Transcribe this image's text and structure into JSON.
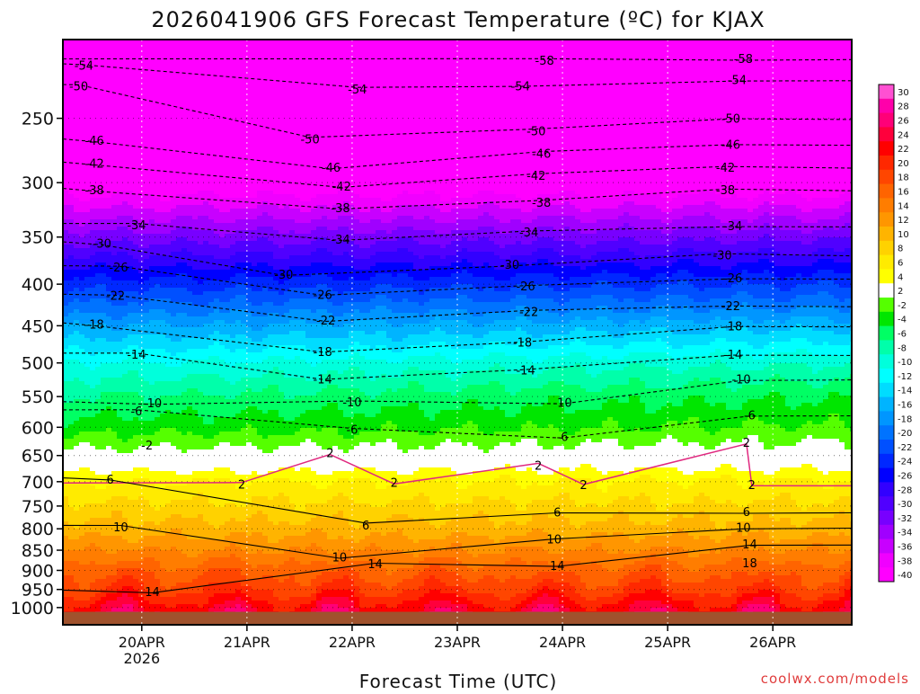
{
  "chart_data": {
    "type": "heatmap",
    "title": "2026041906 GFS Forecast Temperature (ºC) for KJAX",
    "xlabel": "Forecast Time (UTC)",
    "ylabel": "",
    "credit": "coolwx.com/models",
    "x_ticks": [
      {
        "label": "20APR",
        "sublabel": "2026",
        "day": 20
      },
      {
        "label": "21APR",
        "sublabel": "",
        "day": 21
      },
      {
        "label": "22APR",
        "sublabel": "",
        "day": 22
      },
      {
        "label": "23APR",
        "sublabel": "",
        "day": 23
      },
      {
        "label": "24APR",
        "sublabel": "",
        "day": 24
      },
      {
        "label": "25APR",
        "sublabel": "",
        "day": 25
      },
      {
        "label": "26APR",
        "sublabel": "",
        "day": 26
      }
    ],
    "xlim": [
      19.25,
      26.75
    ],
    "y_ticks": [
      250,
      300,
      350,
      400,
      450,
      500,
      550,
      600,
      650,
      700,
      750,
      800,
      850,
      900,
      950,
      1000
    ],
    "ylim": [
      1050,
      200
    ],
    "y_scale": "log",
    "colorbar": {
      "labels": [
        "30",
        "28",
        "26",
        "24",
        "22",
        "20",
        "18",
        "16",
        "14",
        "12",
        "10",
        "8",
        "6",
        "4",
        "2",
        "-2",
        "-4",
        "-6",
        "-8",
        "-10",
        "-12",
        "-14",
        "-16",
        "-18",
        "-20",
        "-22",
        "-24",
        "-26",
        "-28",
        "-30",
        "-32",
        "-34",
        "-36",
        "-38",
        "-40"
      ],
      "colors": [
        "#ff50d2",
        "#ff00aa",
        "#ff0078",
        "#ff003c",
        "#ff0000",
        "#ff2800",
        "#ff4600",
        "#ff6400",
        "#ff7d00",
        "#ff9600",
        "#ffb400",
        "#ffd200",
        "#ffeb00",
        "#ffff00",
        "#ffffff",
        "#55ff00",
        "#00e600",
        "#00ff64",
        "#00ffaa",
        "#00ffdc",
        "#00ffff",
        "#00dcff",
        "#00b4ff",
        "#0096ff",
        "#0073ff",
        "#0050ff",
        "#0028ff",
        "#0000ff",
        "#3200ff",
        "#5000ff",
        "#7800ff",
        "#a000ff",
        "#c800ff",
        "#f000ff",
        "#ff00ff"
      ]
    },
    "ground_color": "#a0522d",
    "freezing_line_color": "#e0287f",
    "contour_labels": [
      {
        "text": "-54",
        "x": 19.45,
        "p": 215
      },
      {
        "text": "-58",
        "x": 23.83,
        "p": 212
      },
      {
        "text": "-58",
        "x": 25.72,
        "p": 211
      },
      {
        "text": "-50",
        "x": 19.4,
        "p": 228
      },
      {
        "text": "-54",
        "x": 22.05,
        "p": 230
      },
      {
        "text": "-54",
        "x": 23.6,
        "p": 228
      },
      {
        "text": "-54",
        "x": 25.66,
        "p": 224
      },
      {
        "text": "-46",
        "x": 19.55,
        "p": 266
      },
      {
        "text": "-50",
        "x": 21.6,
        "p": 265
      },
      {
        "text": "-50",
        "x": 23.75,
        "p": 259
      },
      {
        "text": "-50",
        "x": 25.6,
        "p": 250
      },
      {
        "text": "-42",
        "x": 19.55,
        "p": 284
      },
      {
        "text": "-46",
        "x": 21.8,
        "p": 287
      },
      {
        "text": "-46",
        "x": 23.8,
        "p": 276
      },
      {
        "text": "-46",
        "x": 25.6,
        "p": 269
      },
      {
        "text": "-38",
        "x": 19.55,
        "p": 306
      },
      {
        "text": "-42",
        "x": 21.9,
        "p": 303
      },
      {
        "text": "-42",
        "x": 23.75,
        "p": 294
      },
      {
        "text": "-42",
        "x": 25.55,
        "p": 287
      },
      {
        "text": "-34",
        "x": 19.95,
        "p": 338
      },
      {
        "text": "-38",
        "x": 21.89,
        "p": 322
      },
      {
        "text": "-38",
        "x": 23.8,
        "p": 317
      },
      {
        "text": "-38",
        "x": 25.55,
        "p": 306
      },
      {
        "text": "-30",
        "x": 19.62,
        "p": 356
      },
      {
        "text": "-34",
        "x": 21.89,
        "p": 352
      },
      {
        "text": "-34",
        "x": 23.68,
        "p": 345
      },
      {
        "text": "-34",
        "x": 25.62,
        "p": 339
      },
      {
        "text": "-26",
        "x": 19.78,
        "p": 381
      },
      {
        "text": "-30",
        "x": 21.35,
        "p": 389
      },
      {
        "text": "-30",
        "x": 23.5,
        "p": 378
      },
      {
        "text": "-30",
        "x": 25.52,
        "p": 368
      },
      {
        "text": "-22",
        "x": 19.75,
        "p": 413
      },
      {
        "text": "-26",
        "x": 21.72,
        "p": 412
      },
      {
        "text": "-26",
        "x": 23.65,
        "p": 402
      },
      {
        "text": "-26",
        "x": 25.62,
        "p": 393
      },
      {
        "text": "-18",
        "x": 19.55,
        "p": 448
      },
      {
        "text": "-22",
        "x": 21.75,
        "p": 443
      },
      {
        "text": "-22",
        "x": 23.68,
        "p": 432
      },
      {
        "text": "-22",
        "x": 25.6,
        "p": 425
      },
      {
        "text": "-14",
        "x": 19.95,
        "p": 488
      },
      {
        "text": "-18",
        "x": 21.72,
        "p": 484
      },
      {
        "text": "-18",
        "x": 23.62,
        "p": 471
      },
      {
        "text": "-18",
        "x": 25.62,
        "p": 450
      },
      {
        "text": "-10",
        "x": 20.1,
        "p": 560
      },
      {
        "text": "-14",
        "x": 21.72,
        "p": 523
      },
      {
        "text": "-14",
        "x": 23.65,
        "p": 510
      },
      {
        "text": "-14",
        "x": 25.62,
        "p": 488
      },
      {
        "text": "-6",
        "x": 19.95,
        "p": 573
      },
      {
        "text": "-10",
        "x": 22.0,
        "p": 558
      },
      {
        "text": "-10",
        "x": 24.0,
        "p": 559
      },
      {
        "text": "-10",
        "x": 25.7,
        "p": 523
      },
      {
        "text": "-2",
        "x": 20.05,
        "p": 631
      },
      {
        "text": "-6",
        "x": 22.0,
        "p": 603
      },
      {
        "text": "-6",
        "x": 24.0,
        "p": 616
      },
      {
        "text": "-6",
        "x": 25.78,
        "p": 579
      },
      {
        "text": "2",
        "x": 21.79,
        "p": 645
      },
      {
        "text": "2",
        "x": 23.77,
        "p": 668
      },
      {
        "text": "2",
        "x": 25.75,
        "p": 626
      },
      {
        "text": "6",
        "x": 19.7,
        "p": 695
      },
      {
        "text": "2",
        "x": 20.95,
        "p": 705
      },
      {
        "text": "2",
        "x": 22.4,
        "p": 701
      },
      {
        "text": "2",
        "x": 24.2,
        "p": 706
      },
      {
        "text": "2",
        "x": 25.8,
        "p": 706
      },
      {
        "text": "10",
        "x": 19.8,
        "p": 795
      },
      {
        "text": "6",
        "x": 22.13,
        "p": 791
      },
      {
        "text": "6",
        "x": 23.95,
        "p": 763
      },
      {
        "text": "6",
        "x": 25.75,
        "p": 762
      },
      {
        "text": "10",
        "x": 21.88,
        "p": 866
      },
      {
        "text": "10",
        "x": 23.92,
        "p": 823
      },
      {
        "text": "10",
        "x": 25.72,
        "p": 796
      },
      {
        "text": "14",
        "x": 20.1,
        "p": 955
      },
      {
        "text": "14",
        "x": 22.22,
        "p": 883
      },
      {
        "text": "14",
        "x": 23.95,
        "p": 888
      },
      {
        "text": "14",
        "x": 25.78,
        "p": 835
      },
      {
        "text": "18",
        "x": 25.78,
        "p": 881
      }
    ]
  }
}
